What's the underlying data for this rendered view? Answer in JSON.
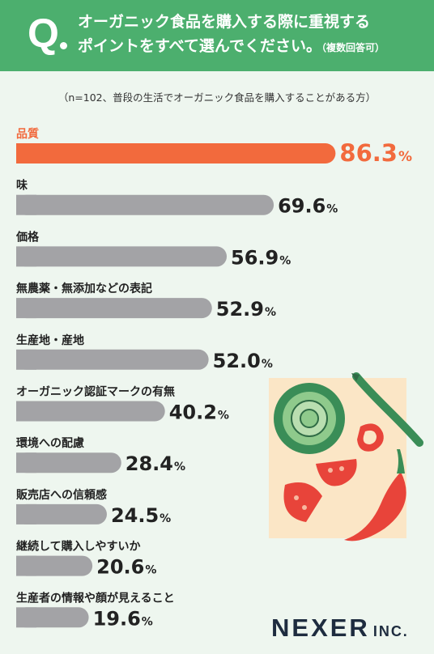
{
  "header": {
    "q_letter": "Q",
    "title_line1": "オーガニック食品を購入する際に重視する",
    "title_line2": "ポイントをすべて選んでください。",
    "title_note": "（複数回答可）"
  },
  "subtitle": "（n=102、普段の生活でオーガニック食品を購入することがある方）",
  "brand": {
    "name": "NEXER",
    "suffix": "INC."
  },
  "colors": {
    "highlight": "#f26a3d",
    "bar": "#a3a3a6",
    "header": "#4caf6e",
    "background": "#eef6ef"
  },
  "chart_data": {
    "type": "bar",
    "orientation": "horizontal",
    "unit": "%",
    "categories": [
      "品質",
      "味",
      "価格",
      "無農薬・無添加などの表記",
      "生産地・産地",
      "オーガニック認証マークの有無",
      "環境への配慮",
      "販売店への信頼感",
      "継続して購入しやすいか",
      "生産者の情報や顔が見えること"
    ],
    "values": [
      86.3,
      69.6,
      56.9,
      52.9,
      52.0,
      40.2,
      28.4,
      24.5,
      20.6,
      19.6
    ],
    "value_labels": [
      "86.3",
      "69.6",
      "56.9",
      "52.9",
      "52.0",
      "40.2",
      "28.4",
      "24.5",
      "20.6",
      "19.6"
    ],
    "highlight_index": 0,
    "xlim": [
      0,
      100
    ],
    "title": "",
    "xlabel": "",
    "ylabel": ""
  }
}
